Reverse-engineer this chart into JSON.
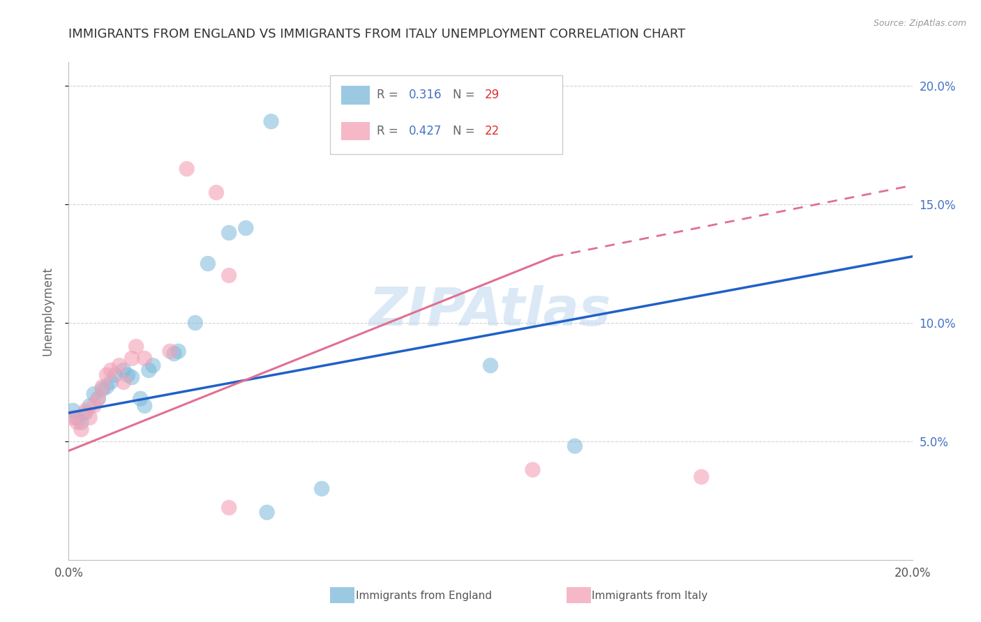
{
  "title": "IMMIGRANTS FROM ENGLAND VS IMMIGRANTS FROM ITALY UNEMPLOYMENT CORRELATION CHART",
  "source": "Source: ZipAtlas.com",
  "ylabel": "Unemployment",
  "watermark": "ZIPAtlas",
  "xlim": [
    0.0,
    0.2
  ],
  "ylim": [
    0.0,
    0.21
  ],
  "england_color": "#7ab8d9",
  "italy_color": "#f4a0b5",
  "england_R": "0.316",
  "england_N": "29",
  "italy_R": "0.427",
  "italy_N": "22",
  "england_scatter": [
    [
      0.001,
      0.063
    ],
    [
      0.002,
      0.06
    ],
    [
      0.003,
      0.058
    ],
    [
      0.004,
      0.062
    ],
    [
      0.005,
      0.065
    ],
    [
      0.006,
      0.07
    ],
    [
      0.007,
      0.068
    ],
    [
      0.008,
      0.072
    ],
    [
      0.009,
      0.073
    ],
    [
      0.01,
      0.075
    ],
    [
      0.011,
      0.078
    ],
    [
      0.013,
      0.08
    ],
    [
      0.014,
      0.078
    ],
    [
      0.015,
      0.077
    ],
    [
      0.017,
      0.068
    ],
    [
      0.018,
      0.065
    ],
    [
      0.019,
      0.08
    ],
    [
      0.02,
      0.082
    ],
    [
      0.025,
      0.087
    ],
    [
      0.026,
      0.088
    ],
    [
      0.03,
      0.1
    ],
    [
      0.033,
      0.125
    ],
    [
      0.038,
      0.138
    ],
    [
      0.042,
      0.14
    ],
    [
      0.048,
      0.185
    ],
    [
      0.1,
      0.082
    ],
    [
      0.12,
      0.048
    ],
    [
      0.06,
      0.03
    ],
    [
      0.047,
      0.02
    ]
  ],
  "italy_scatter": [
    [
      0.001,
      0.06
    ],
    [
      0.002,
      0.058
    ],
    [
      0.003,
      0.055
    ],
    [
      0.004,
      0.063
    ],
    [
      0.005,
      0.06
    ],
    [
      0.006,
      0.065
    ],
    [
      0.007,
      0.068
    ],
    [
      0.008,
      0.073
    ],
    [
      0.009,
      0.078
    ],
    [
      0.01,
      0.08
    ],
    [
      0.012,
      0.082
    ],
    [
      0.013,
      0.075
    ],
    [
      0.015,
      0.085
    ],
    [
      0.016,
      0.09
    ],
    [
      0.018,
      0.085
    ],
    [
      0.024,
      0.088
    ],
    [
      0.028,
      0.165
    ],
    [
      0.035,
      0.155
    ],
    [
      0.038,
      0.12
    ],
    [
      0.11,
      0.038
    ],
    [
      0.15,
      0.035
    ],
    [
      0.038,
      0.022
    ]
  ],
  "england_line": [
    0.0,
    0.062,
    0.2,
    0.128
  ],
  "italy_line_solid": [
    0.0,
    0.046,
    0.115,
    0.128
  ],
  "italy_line_dashed": [
    0.115,
    0.128,
    0.2,
    0.158
  ],
  "background_color": "#ffffff",
  "grid_color": "#cccccc",
  "title_color": "#333333",
  "right_axis_color": "#4472c4",
  "legend_england_label": "Immigrants from England",
  "legend_italy_label": "Immigrants from Italy"
}
